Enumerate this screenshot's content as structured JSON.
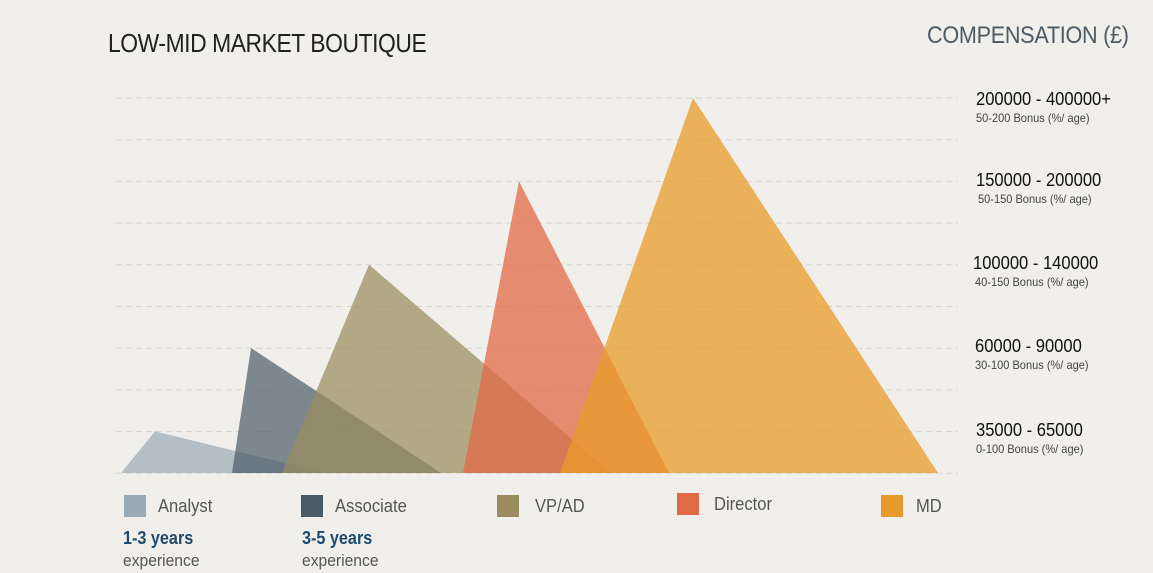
{
  "title": "LOW-MID MARKET BOUTIQUE",
  "compensation_title": "COMPENSATION (£)",
  "levels": [
    {
      "range": "200000 - 400000+",
      "bonus": "50-200 Bonus (%/ age)"
    },
    {
      "range": "150000 - 200000",
      "bonus": "50-150 Bonus (%/ age)"
    },
    {
      "range": "100000 - 140000",
      "bonus": "40-150 Bonus (%/ age)"
    },
    {
      "range": "60000 - 90000",
      "bonus": "30-100 Bonus (%/ age)"
    },
    {
      "range": "35000 - 65000",
      "bonus": "0-100 Bonus (%/ age)"
    }
  ],
  "legend": [
    {
      "label": "Analyst",
      "color": "#9aabb5"
    },
    {
      "label": "Associate",
      "color": "#4a5b66"
    },
    {
      "label": "VP/AD",
      "color": "#9a8c5e"
    },
    {
      "label": "Director",
      "color": "#e06a45"
    },
    {
      "label": "MD",
      "color": "#e89b2a"
    }
  ],
  "experience": [
    {
      "years": "1-3 years",
      "word": "experience"
    },
    {
      "years": "3-5 years",
      "word": "experience"
    }
  ],
  "chart_data": {
    "type": "area",
    "title": "LOW-MID MARKET BOUTIQUE",
    "ylabel": "COMPENSATION (£)",
    "categories": [
      "35000 - 65000",
      "60000 - 90000",
      "100000 - 140000",
      "150000 - 200000",
      "200000 - 400000+"
    ],
    "series": [
      {
        "name": "Analyst",
        "peak_level": 0.5,
        "color": "#9aabb5"
      },
      {
        "name": "Associate",
        "peak_level": 1.5,
        "color": "#4a5b66"
      },
      {
        "name": "VP/AD",
        "peak_level": 2.5,
        "color": "#9a8c5e"
      },
      {
        "name": "Director",
        "peak_level": 3.5,
        "color": "#e06a45"
      },
      {
        "name": "MD",
        "peak_level": 4.5,
        "color": "#e89b2a"
      }
    ],
    "grid": true
  }
}
